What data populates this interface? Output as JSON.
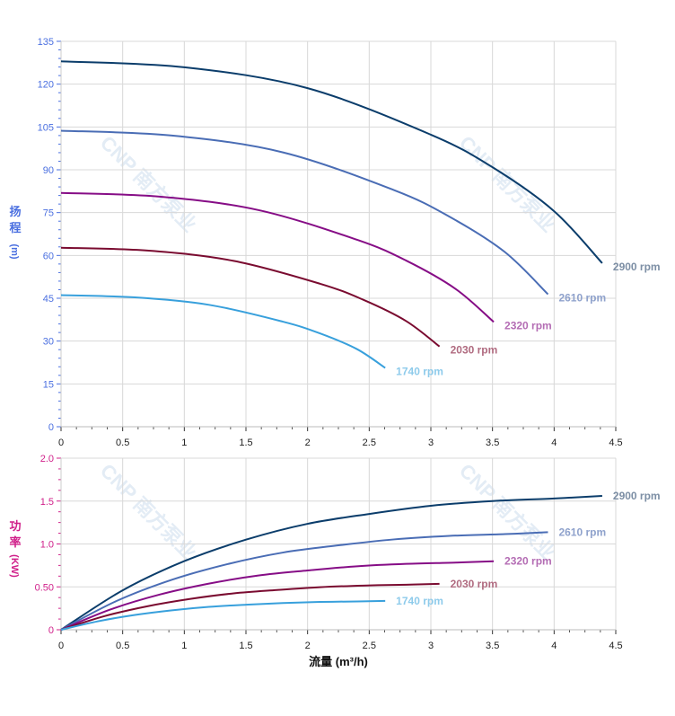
{
  "watermark": "CNP 南方泵业",
  "chart_data": [
    {
      "type": "line",
      "ylabel_chars": [
        "扬",
        "程",
        "(m)"
      ],
      "xlim": [
        0,
        4.5
      ],
      "ylim": [
        0,
        135
      ],
      "x_ticks": [
        "0",
        "0.5",
        "1",
        "1.5",
        "2",
        "2.5",
        "3",
        "3.5",
        "4",
        "4.5"
      ],
      "y_ticks": [
        "0",
        "15",
        "30",
        "45",
        "60",
        "75",
        "90",
        "105",
        "120",
        "135"
      ],
      "grid": true,
      "series": [
        {
          "name": "2900 rpm",
          "color": "#0b3d6b",
          "label_color": "#7d8fa5",
          "x": [
            0,
            1,
            2,
            3,
            3.5,
            4,
            4.39
          ],
          "y": [
            128,
            125.9,
            118.6,
            102.3,
            90.9,
            75.5,
            57.3
          ]
        },
        {
          "name": "2610 rpm",
          "color": "#4a6db5",
          "label_color": "#8fa2cc",
          "x": [
            0,
            0.9,
            1.8,
            2.7,
            3.15,
            3.6,
            3.95
          ],
          "y": [
            103.7,
            102.0,
            96.1,
            82.9,
            73.6,
            61.2,
            46.4
          ]
        },
        {
          "name": "2320 rpm",
          "color": "#860d86",
          "label_color": "#b46db4",
          "x": [
            0,
            0.8,
            1.6,
            2.4,
            2.8,
            3.2,
            3.51
          ],
          "y": [
            81.9,
            80.6,
            75.9,
            65.5,
            58.2,
            48.3,
            36.7
          ]
        },
        {
          "name": "2030 rpm",
          "color": "#7a0b30",
          "label_color": "#b06b80",
          "x": [
            0,
            0.7,
            1.4,
            2.1,
            2.45,
            2.8,
            3.07
          ],
          "y": [
            62.7,
            61.7,
            58.1,
            50.1,
            44.5,
            37.0,
            28.1
          ]
        },
        {
          "name": "1740 rpm",
          "color": "#38a0dc",
          "label_color": "#8ecbeb",
          "x": [
            0,
            0.6,
            1.2,
            1.8,
            2.1,
            2.4,
            2.63
          ],
          "y": [
            46.1,
            45.3,
            42.7,
            36.8,
            32.7,
            27.2,
            20.6
          ]
        }
      ]
    },
    {
      "type": "line",
      "ylabel_chars": [
        "功",
        "率",
        "(KW)"
      ],
      "xlabel": "流量 (m³/h)",
      "xlim": [
        0,
        4.5
      ],
      "ylim": [
        0,
        2.0
      ],
      "x_ticks": [
        "0",
        "0.5",
        "1",
        "1.5",
        "2",
        "2.5",
        "3",
        "3.5",
        "4",
        "4.5"
      ],
      "y_ticks": [
        "0",
        "0.50",
        "1.0",
        "1.5",
        "2.0"
      ],
      "grid": true,
      "series": [
        {
          "name": "2900 rpm",
          "color": "#0b3d6b",
          "label_color": "#7d8fa5",
          "x": [
            0,
            0.5,
            1,
            1.5,
            2,
            2.5,
            3,
            3.5,
            4,
            4.39
          ],
          "y": [
            0,
            0.46,
            0.8,
            1.05,
            1.235,
            1.35,
            1.445,
            1.5,
            1.53,
            1.56
          ]
        },
        {
          "name": "2610 rpm",
          "color": "#4a6db5",
          "label_color": "#8fa2cc",
          "x": [
            0,
            0.45,
            0.9,
            1.35,
            1.8,
            2.25,
            2.7,
            3.15,
            3.6,
            3.95
          ],
          "y": [
            0,
            0.335,
            0.583,
            0.765,
            0.9,
            0.984,
            1.053,
            1.094,
            1.115,
            1.137
          ]
        },
        {
          "name": "2320 rpm",
          "color": "#860d86",
          "label_color": "#b46db4",
          "x": [
            0,
            0.4,
            0.8,
            1.2,
            1.6,
            2.0,
            2.4,
            2.8,
            3.2,
            3.51
          ],
          "y": [
            0,
            0.236,
            0.41,
            0.538,
            0.632,
            0.691,
            0.74,
            0.768,
            0.783,
            0.799
          ]
        },
        {
          "name": "2030 rpm",
          "color": "#7a0b30",
          "label_color": "#b06b80",
          "x": [
            0,
            0.35,
            0.7,
            1.05,
            1.4,
            1.75,
            2.1,
            2.45,
            2.8,
            3.07
          ],
          "y": [
            0,
            0.158,
            0.274,
            0.36,
            0.424,
            0.463,
            0.496,
            0.515,
            0.525,
            0.535
          ]
        },
        {
          "name": "1740 rpm",
          "color": "#38a0dc",
          "label_color": "#8ecbeb",
          "x": [
            0,
            0.3,
            0.6,
            0.9,
            1.2,
            1.5,
            1.8,
            2.1,
            2.4,
            2.63
          ],
          "y": [
            0,
            0.099,
            0.173,
            0.227,
            0.267,
            0.292,
            0.312,
            0.324,
            0.33,
            0.337
          ]
        }
      ]
    }
  ],
  "colors": {
    "head_axis": "#4a6fe0",
    "power_axis": "#d0208a",
    "grid": "#d8d8d8"
  }
}
